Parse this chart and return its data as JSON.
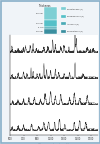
{
  "bg_color": "#f0f4f8",
  "plot_bg": "#ffffff",
  "border_color": "#88afc8",
  "line_color": "#1a1a1a",
  "legend_layers": [
    {
      "label": "Polyethylene (1)",
      "color": "#7ecfd4"
    },
    {
      "label": "Polypropylene (2)",
      "color": "#55c0c8"
    },
    {
      "label": "Adhesive (3)",
      "color": "#4aaab5"
    },
    {
      "label": "Polyurethane (4)",
      "color": "#3a8fa0"
    }
  ],
  "thickness_labels": [
    "50 um",
    "30 um",
    "5 um",
    "20 um"
  ],
  "xlabel": "Wavenumber (cm-1)",
  "xmin": 500,
  "xmax": 1800,
  "depth_labels": [
    "z=0, n=50um",
    "z=2.1, n=50um",
    "z=3.1, n=50um",
    "z=5.3, n=50um"
  ]
}
